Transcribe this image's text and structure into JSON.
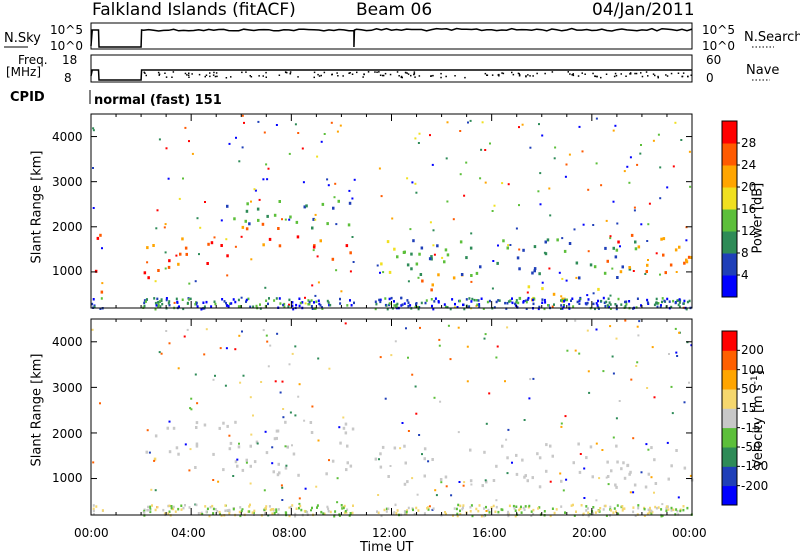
{
  "header": {
    "station": "Falkland Islands (fitACF)",
    "beam": "Beam 06",
    "date": "04/Jan/2011"
  },
  "strip_nsky": {
    "label": "N.Sky",
    "left_ticks": [
      "10^5",
      "10^0"
    ],
    "right_ticks": [
      "10^5",
      "10^0"
    ],
    "right_label": "N.Search",
    "right_label_style": "dotted"
  },
  "strip_freq": {
    "label_line1": "Freq.",
    "label_line2": "[MHz]",
    "left_ticks": [
      "18",
      "8"
    ],
    "right_ticks": [
      "60",
      "0"
    ],
    "right_label": "Nave",
    "right_label_style": "dotted"
  },
  "cpid": {
    "label": "CPID",
    "mode": "normal (fast) 151"
  },
  "x_axis": {
    "title": "Time UT",
    "ticks": [
      "00:00",
      "04:00",
      "08:00",
      "12:00",
      "16:00",
      "20:00",
      "00:00"
    ],
    "range_hours": [
      0,
      24
    ]
  },
  "chart_data": [
    {
      "type": "heatmap",
      "name": "power",
      "ylabel": "Slant Range [km]",
      "yticks": [
        "1000",
        "2000",
        "3000",
        "4000"
      ],
      "ylim": [
        200,
        4500
      ],
      "colorbar_label": "Power [dB]",
      "colorbar_ticks": [
        "4",
        "8",
        "12",
        "16",
        "20",
        "24",
        "28"
      ],
      "colorbar_range": [
        0,
        32
      ],
      "colors": [
        "#0000ff",
        "#1f3fb8",
        "#2e8b57",
        "#5cbf3a",
        "#f0e020",
        "#ffa500",
        "#ff5a00",
        "#ff0000"
      ],
      "data_gap_hours": [
        [
          0.5,
          2.0
        ],
        [
          10.5,
          11.3
        ]
      ],
      "bands": [
        {
          "t": [
            0.0,
            0.4
          ],
          "r": [
            400,
            1900
          ],
          "v": 26
        },
        {
          "t": [
            2.0,
            3.5
          ],
          "r": [
            900,
            1700
          ],
          "v": 26
        },
        {
          "t": [
            3.5,
            6.0
          ],
          "r": [
            1200,
            1800
          ],
          "v": 27
        },
        {
          "t": [
            6.0,
            8.5
          ],
          "r": [
            1600,
            2100
          ],
          "v": 27
        },
        {
          "t": [
            8.5,
            10.5
          ],
          "r": [
            1300,
            1800
          ],
          "v": 26
        },
        {
          "t": [
            4.5,
            10.5
          ],
          "r": [
            2000,
            2600
          ],
          "v": 11
        },
        {
          "t": [
            11.3,
            12.5
          ],
          "r": [
            900,
            1800
          ],
          "v": 16
        },
        {
          "t": [
            12.5,
            15.0
          ],
          "r": [
            600,
            1000
          ],
          "v": 26
        },
        {
          "t": [
            12.5,
            22.0
          ],
          "r": [
            900,
            1800
          ],
          "v": 10
        },
        {
          "t": [
            20.5,
            24.0
          ],
          "r": [
            1000,
            1900
          ],
          "v": 24
        },
        {
          "t": [
            17.0,
            20.5
          ],
          "r": [
            400,
            800
          ],
          "v": 18
        }
      ]
    },
    {
      "type": "heatmap",
      "name": "velocity",
      "ylabel": "Slant Range [km]",
      "yticks": [
        "1000",
        "2000",
        "3000",
        "4000"
      ],
      "ylim": [
        200,
        4500
      ],
      "colorbar_label_main": "Velocity [m s",
      "colorbar_label_sup": "-1",
      "colorbar_label_end": "]",
      "colorbar_ticks": [
        "200",
        "100",
        "50",
        "15",
        "-15",
        "-50",
        "-100",
        "-200"
      ],
      "colorbar_range": [
        -250,
        250
      ],
      "colors": [
        "#ff0000",
        "#ff6000",
        "#ffa500",
        "#f5d76e",
        "#c8c8c8",
        "#5cbf3a",
        "#2e8b57",
        "#1f3fb8",
        "#0000ff"
      ],
      "data_gap_hours": [
        [
          0.5,
          2.0
        ],
        [
          10.5,
          11.3
        ]
      ],
      "ground_scatter_color": "#c8c8c8",
      "bands": [
        {
          "t": [
            2.0,
            10.5
          ],
          "r": [
            1100,
            2300
          ],
          "v": 0
        },
        {
          "t": [
            11.3,
            24.0
          ],
          "r": [
            800,
            1800
          ],
          "v": 0
        },
        {
          "t": [
            2.2,
            2.8
          ],
          "r": [
            1100,
            1500
          ],
          "v": -60
        }
      ]
    }
  ],
  "colorbar_power_colors": [
    "#0000ff",
    "#1f3fb8",
    "#2e8b57",
    "#5cbf3a",
    "#f0e020",
    "#ffa500",
    "#ff5a00",
    "#ff0000"
  ],
  "colorbar_velocity_colors": [
    "#0000ff",
    "#1f3fb8",
    "#2e8b57",
    "#5cbf3a",
    "#c8c8c8",
    "#f5d76e",
    "#ffa500",
    "#ff6000",
    "#ff0000"
  ]
}
